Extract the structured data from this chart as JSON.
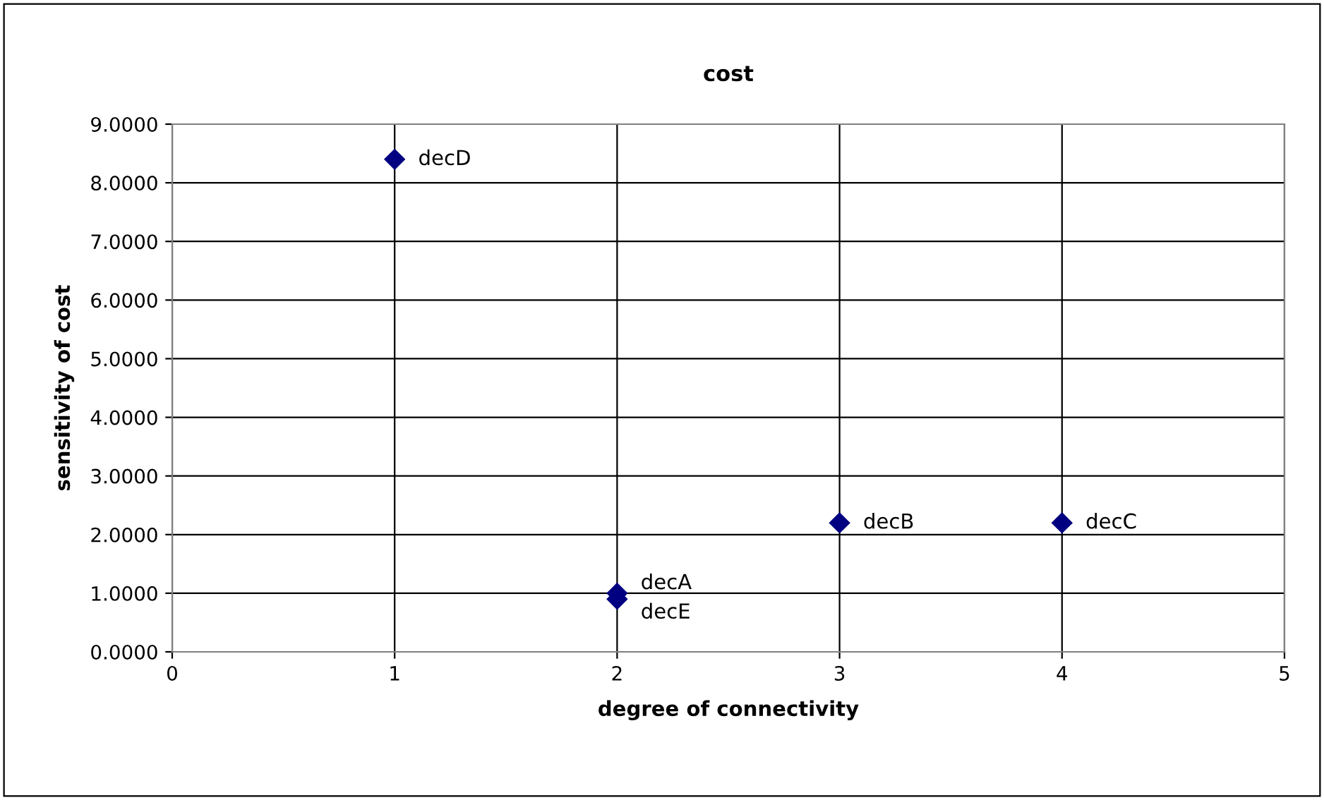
{
  "chart_data": {
    "type": "scatter",
    "title": "cost",
    "xlabel": "degree of connectivity",
    "ylabel": "sensitivity of cost",
    "x": [
      2,
      3,
      4,
      1,
      2
    ],
    "series": [
      {
        "color": "#000080",
        "values": [
          1.0,
          2.2,
          2.2,
          8.4,
          0.9
        ]
      }
    ],
    "annotations": [
      {
        "text": "decA",
        "x": 2,
        "y": 1.0
      },
      {
        "text": "decB",
        "x": 3,
        "y": 2.2
      },
      {
        "text": "decC",
        "x": 4,
        "y": 2.2
      },
      {
        "text": "decD",
        "x": 1,
        "y": 8.4
      },
      {
        "text": "decE",
        "x": 2,
        "y": 0.9
      }
    ],
    "xlim": [
      0,
      5
    ],
    "xticks": [
      0,
      1,
      2,
      3,
      4,
      5
    ],
    "ylim": [
      0,
      9
    ],
    "yticks": [
      {
        "value": 0,
        "label": "0.0000"
      },
      {
        "value": 1,
        "label": "1.0000"
      },
      {
        "value": 2,
        "label": "2.0000"
      },
      {
        "value": 3,
        "label": "3.0000"
      },
      {
        "value": 4,
        "label": "4.0000"
      },
      {
        "value": 5,
        "label": "5.0000"
      },
      {
        "value": 6,
        "label": "6.0000"
      },
      {
        "value": 7,
        "label": "7.0000"
      },
      {
        "value": 8,
        "label": "8.0000"
      },
      {
        "value": 9,
        "label": "9.0000"
      }
    ],
    "grid": true,
    "marker": "diamond",
    "legend": false
  }
}
